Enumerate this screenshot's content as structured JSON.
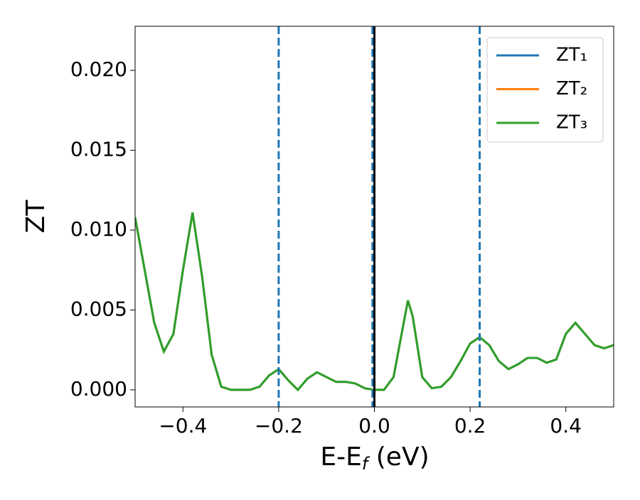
{
  "chart_data": {
    "type": "line",
    "xlabel": [
      "E-E",
      "f",
      " (eV)"
    ],
    "ylabel": "ZT",
    "x": [
      -0.5,
      -0.48,
      -0.46,
      -0.44,
      -0.42,
      -0.4,
      -0.38,
      -0.36,
      -0.34,
      -0.32,
      -0.3,
      -0.28,
      -0.26,
      -0.24,
      -0.22,
      -0.2,
      -0.18,
      -0.16,
      -0.14,
      -0.12,
      -0.1,
      -0.08,
      -0.06,
      -0.04,
      -0.02,
      0,
      0.02,
      0.04,
      0.06,
      0.07,
      0.08,
      0.1,
      0.12,
      0.14,
      0.16,
      0.18,
      0.2,
      0.22,
      0.24,
      0.26,
      0.28,
      0.3,
      0.32,
      0.34,
      0.36,
      0.38,
      0.4,
      0.42,
      0.44,
      0.46,
      0.48,
      0.5
    ],
    "series": [
      {
        "name": "ZT₁",
        "color": "#1f77b4",
        "values": [
          0.0108,
          0.0075,
          0.0042,
          0.0024,
          0.0035,
          0.0075,
          0.0111,
          0.0071,
          0.0022,
          0.0002,
          0.0,
          0.0,
          0.0,
          0.0002,
          0.0009,
          0.0013,
          0.0006,
          0.0,
          0.0007,
          0.0011,
          0.0008,
          0.0005,
          0.0005,
          0.0004,
          0.0001,
          0.0,
          0.0,
          0.0008,
          0.004,
          0.0056,
          0.0046,
          0.0008,
          0.0001,
          0.0002,
          0.0008,
          0.0018,
          0.0029,
          0.0033,
          0.0028,
          0.0018,
          0.0013,
          0.0016,
          0.002,
          0.002,
          0.0017,
          0.0019,
          0.0035,
          0.0042,
          0.0035,
          0.0028,
          0.0026,
          0.0028
        ]
      },
      {
        "name": "ZT₂",
        "color": "#ff7f0e",
        "values": [
          0.0108,
          0.0075,
          0.0042,
          0.0024,
          0.0035,
          0.0075,
          0.0111,
          0.0071,
          0.0022,
          0.0002,
          0.0,
          0.0,
          0.0,
          0.0002,
          0.0009,
          0.0013,
          0.0006,
          0.0,
          0.0007,
          0.0011,
          0.0008,
          0.0005,
          0.0005,
          0.0004,
          0.0001,
          0.0,
          0.0,
          0.0008,
          0.004,
          0.0056,
          0.0046,
          0.0008,
          0.0001,
          0.0002,
          0.0008,
          0.0018,
          0.0029,
          0.0033,
          0.0028,
          0.0018,
          0.0013,
          0.0016,
          0.002,
          0.002,
          0.0017,
          0.0019,
          0.0035,
          0.0042,
          0.0035,
          0.0028,
          0.0026,
          0.0028
        ]
      },
      {
        "name": "ZT₃",
        "color": "#2ca02c",
        "values": [
          0.0108,
          0.0075,
          0.0042,
          0.0024,
          0.0035,
          0.0075,
          0.0111,
          0.0071,
          0.0022,
          0.0002,
          0.0,
          0.0,
          0.0,
          0.0002,
          0.0009,
          0.0013,
          0.0006,
          0.0,
          0.0007,
          0.0011,
          0.0008,
          0.0005,
          0.0005,
          0.0004,
          0.0001,
          0.0,
          0.0,
          0.0008,
          0.004,
          0.0056,
          0.0046,
          0.0008,
          0.0001,
          0.0002,
          0.0008,
          0.0018,
          0.0029,
          0.0033,
          0.0028,
          0.0018,
          0.0013,
          0.0016,
          0.002,
          0.002,
          0.0017,
          0.0019,
          0.0035,
          0.0042,
          0.0035,
          0.0028,
          0.0026,
          0.0028
        ]
      }
    ],
    "vlines": [
      {
        "x": -0.2,
        "color": "#1f77b4",
        "style": "dashed"
      },
      {
        "x": -0.004,
        "color": "#1f77b4",
        "style": "dashed"
      },
      {
        "x": 0.22,
        "color": "#1f77b4",
        "style": "dashed"
      },
      {
        "x": 0,
        "color": "#000000",
        "style": "solid"
      }
    ],
    "xlim": [
      -0.5,
      0.5
    ],
    "ylim": [
      -0.00107,
      0.02276
    ],
    "xticks": [
      {
        "value": -0.4,
        "label": "−0.4"
      },
      {
        "value": -0.2,
        "label": "−0.2"
      },
      {
        "value": 0,
        "label": "0.0"
      },
      0.2,
      0.4
    ],
    "yticks": [
      {
        "value": 0,
        "label": "0.000"
      },
      {
        "value": 0.005,
        "label": "0.005"
      },
      {
        "value": 0.01,
        "label": "0.010"
      },
      {
        "value": 0.015,
        "label": "0.015"
      },
      {
        "value": 0.02,
        "label": "0.020"
      }
    ],
    "legend": "upper right",
    "grid": false
  }
}
